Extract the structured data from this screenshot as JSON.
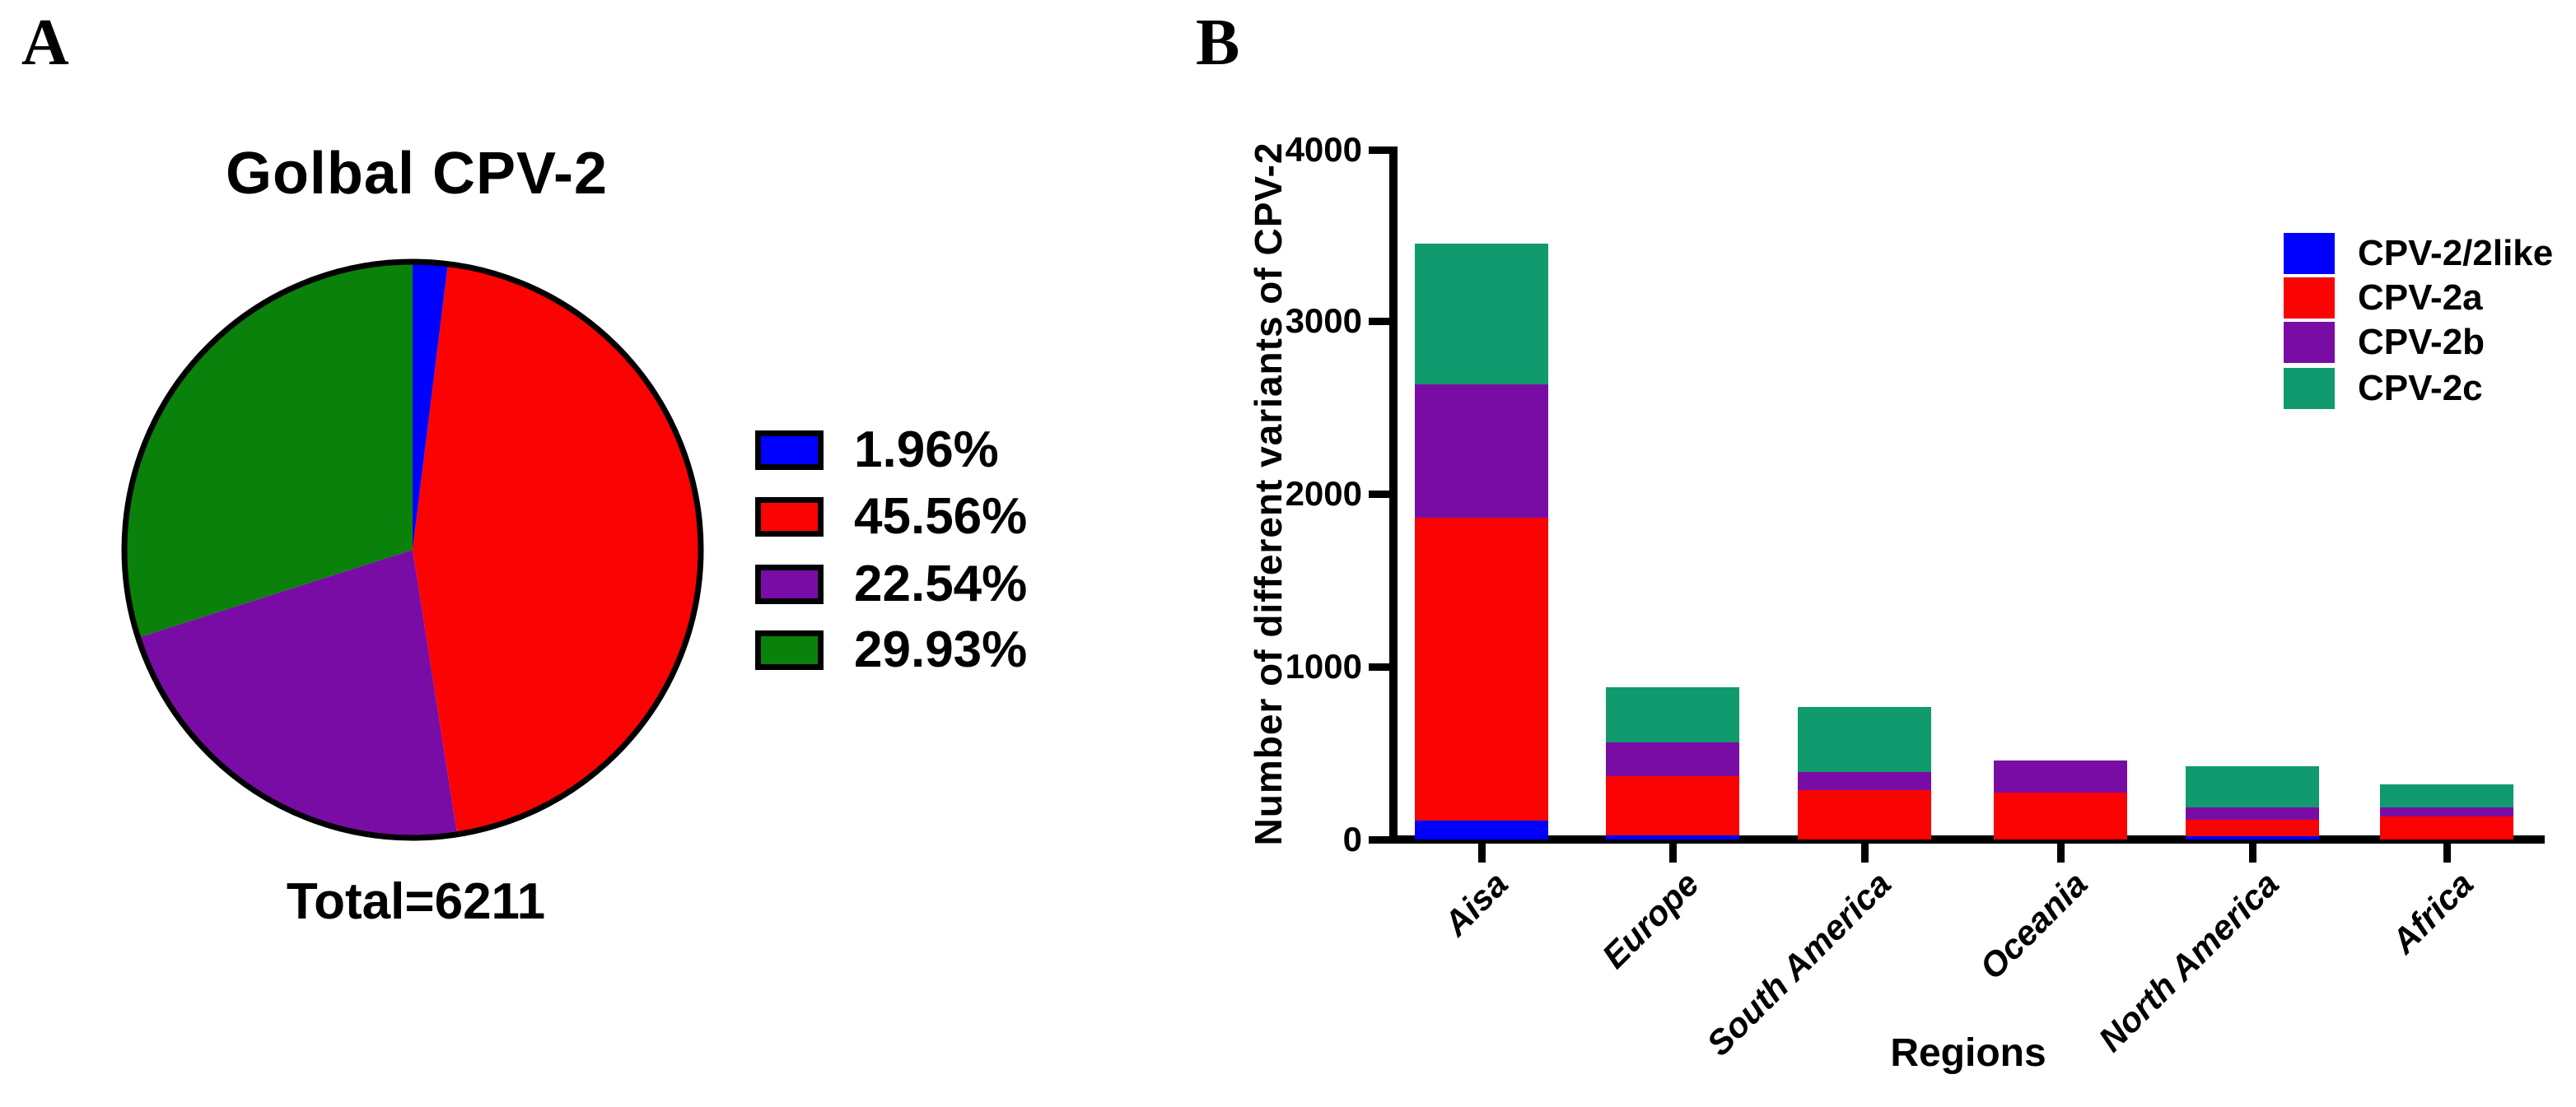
{
  "figure": {
    "panel_a": {
      "label": "A",
      "title": "Golbal CPV-2",
      "total_label": "Total=6211",
      "legend": [
        {
          "label": "1.96%",
          "color": "#0000fe"
        },
        {
          "label": "45.56%",
          "color": "#fc0303"
        },
        {
          "label": "22.54%",
          "color": "#7a0ca6"
        },
        {
          "label": "29.93%",
          "color": "#0a810a"
        }
      ]
    },
    "panel_b": {
      "label": "B",
      "y_axis_title": "Number of different variants of CPV-2",
      "x_axis_title": "Regions",
      "y_ticks": [
        "4000",
        "3000",
        "2000",
        "1000",
        "0"
      ],
      "legend": [
        {
          "label": "CPV-2/2like",
          "color": "#0000fe"
        },
        {
          "label": "CPV-2a",
          "color": "#fc0303"
        },
        {
          "label": "CPV-2b",
          "color": "#7a0ca6"
        },
        {
          "label": "CPV-2c",
          "color": "#109a6d"
        }
      ]
    }
  },
  "chart_data": [
    {
      "type": "pie",
      "title": "Golbal CPV-2",
      "total_label": "Total=6211",
      "start_angle_deg": 0,
      "direction": "clockwise",
      "slices": [
        {
          "label": "1.96%",
          "value": 1.96,
          "color": "#0000fe"
        },
        {
          "label": "45.56%",
          "value": 45.56,
          "color": "#fc0303"
        },
        {
          "label": "22.54%",
          "value": 22.54,
          "color": "#7a0ca6"
        },
        {
          "label": "29.93%",
          "value": 29.93,
          "color": "#0a810a"
        }
      ]
    },
    {
      "type": "bar",
      "stacked": true,
      "title": "",
      "xlabel": "Regions",
      "ylabel": "Number of different variants of CPV-2",
      "ylim": [
        0,
        4000
      ],
      "yticks": [
        0,
        1000,
        2000,
        3000,
        4000
      ],
      "grid": false,
      "legend_position": "upper right",
      "categories": [
        "Aisa",
        "Europe",
        "South America",
        "Oceania",
        "North America",
        "Africa"
      ],
      "series": [
        {
          "name": "CPV-2/2like",
          "color": "#0000fe",
          "values": [
            110,
            25,
            0,
            0,
            20,
            0
          ]
        },
        {
          "name": "CPV-2a",
          "color": "#fc0303",
          "values": [
            1750,
            340,
            285,
            270,
            95,
            135
          ]
        },
        {
          "name": "CPV-2b",
          "color": "#7a0ca6",
          "values": [
            775,
            195,
            105,
            185,
            70,
            50
          ]
        },
        {
          "name": "CPV-2c",
          "color": "#109a6d",
          "values": [
            815,
            320,
            375,
            0,
            240,
            135
          ]
        }
      ],
      "category_totals": [
        3450,
        880,
        765,
        455,
        425,
        320
      ],
      "note": "segment values estimated from bar pixel heights"
    }
  ]
}
